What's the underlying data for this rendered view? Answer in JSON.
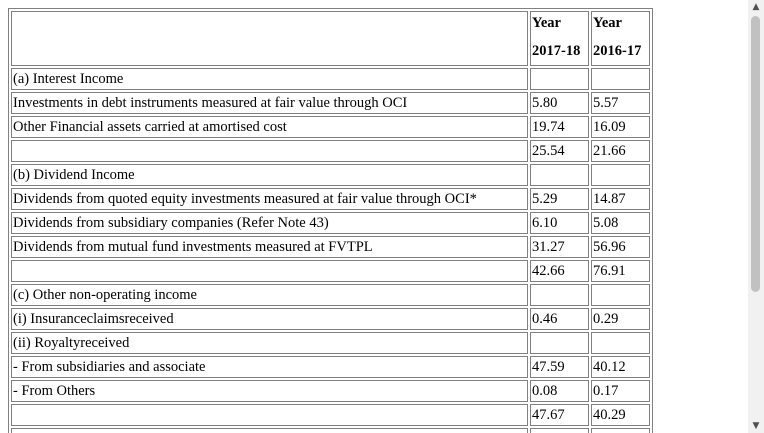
{
  "table": {
    "header": {
      "col1_line1": "Year",
      "col1_line2": "2017-18",
      "col2_line1": "Year",
      "col2_line2": "2016-17"
    },
    "rows": [
      {
        "label": "(a) Interest Income",
        "v1": "",
        "v2": ""
      },
      {
        "label": "Investments in debt instruments measured at fair value through OCI",
        "v1": "5.80",
        "v2": "5.57"
      },
      {
        "label": "Other Financial assets carried at amortised cost",
        "v1": "19.74",
        "v2": "16.09"
      },
      {
        "label": "",
        "v1": "25.54",
        "v2": "21.66"
      },
      {
        "label": "(b) Dividend Income",
        "v1": "",
        "v2": ""
      },
      {
        "label": "Dividends from quoted equity investments measured at fair value through OCI*",
        "v1": "5.29",
        "v2": "14.87"
      },
      {
        "label": "Dividends from subsidiary companies (Refer Note 43)",
        "v1": "6.10",
        "v2": "5.08"
      },
      {
        "label": "Dividends from mutual fund investments measured at FVTPL",
        "v1": "31.27",
        "v2": "56.96"
      },
      {
        "label": "",
        "v1": "42.66",
        "v2": "76.91"
      },
      {
        "label": "(c) Other non-operating income",
        "v1": "",
        "v2": ""
      },
      {
        "label": "(i) Insuranceclaimsreceived",
        "v1": "0.46",
        "v2": "0.29"
      },
      {
        "label": "(ii) Royaltyreceived",
        "v1": "",
        "v2": ""
      },
      {
        "label": "- From subsidiaries and associate",
        "v1": "47.59",
        "v2": "40.12"
      },
      {
        "label": "- From Others",
        "v1": "0.08",
        "v2": "0.17"
      },
      {
        "label": "",
        "v1": "47.67",
        "v2": "40.29"
      },
      {
        "label": "",
        "v1": "",
        "v2": ""
      }
    ]
  },
  "scrollbar": {
    "up_icon": "triangle-up",
    "down_icon": "triangle-down"
  }
}
